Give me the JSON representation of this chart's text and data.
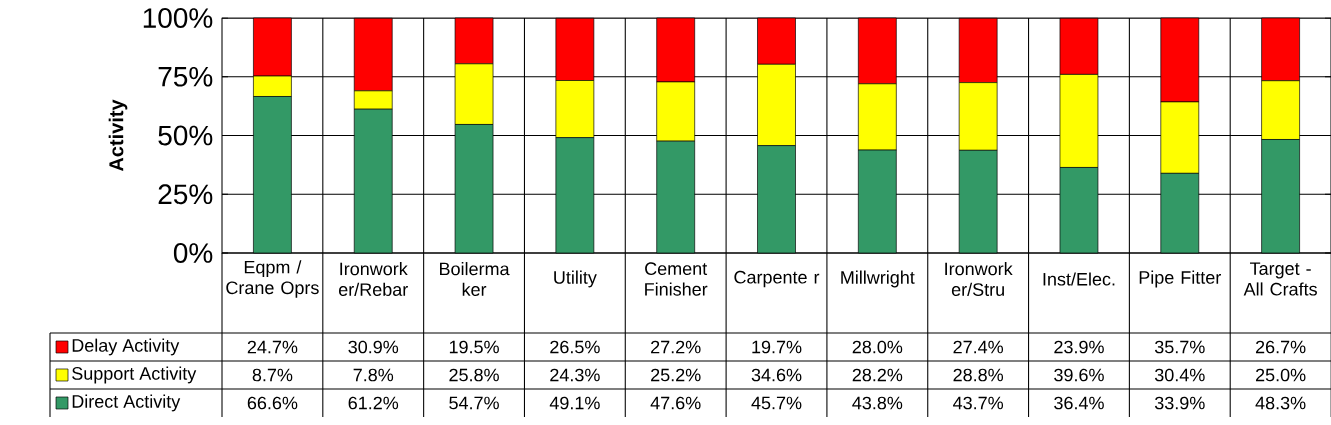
{
  "chart_data": {
    "type": "bar",
    "stacked": true,
    "ylabel": "Activity",
    "categories": [
      "Eqpm / Crane Oprs",
      "Ironwork er/Rebar",
      "Boilerma ker",
      "Utility",
      "Cement Finisher",
      "Carpente r",
      "Millwright",
      "Ironwork er/Stru",
      "Inst/Elec.",
      "Pipe Fitter",
      "Target - All Crafts"
    ],
    "series": [
      {
        "name": "Direct Activity",
        "color": "#339966",
        "values": [
          66.6,
          61.2,
          54.7,
          49.1,
          47.6,
          45.7,
          43.8,
          43.7,
          36.4,
          33.9,
          48.3
        ],
        "value_labels": [
          "66.6%",
          "61.2%",
          "54.7%",
          "49.1%",
          "47.6%",
          "45.7%",
          "43.8%",
          "43.7%",
          "36.4%",
          "33.9%",
          "48.3%"
        ]
      },
      {
        "name": "Support Activity",
        "color": "#ffff00",
        "values": [
          8.7,
          7.8,
          25.8,
          24.3,
          25.2,
          34.6,
          28.2,
          28.8,
          39.6,
          30.4,
          25.0
        ],
        "value_labels": [
          "8.7%",
          "7.8%",
          "25.8%",
          "24.3%",
          "25.2%",
          "34.6%",
          "28.2%",
          "28.8%",
          "39.6%",
          "30.4%",
          "25.0%"
        ]
      },
      {
        "name": "Delay Activity",
        "color": "#ff0000",
        "values": [
          24.7,
          30.9,
          19.5,
          26.5,
          27.2,
          19.7,
          28.0,
          27.4,
          23.9,
          35.7,
          26.7
        ],
        "value_labels": [
          "24.7%",
          "30.9%",
          "19.5%",
          "26.5%",
          "27.2%",
          "19.7%",
          "28.0%",
          "27.4%",
          "23.9%",
          "35.7%",
          "26.7%"
        ]
      }
    ],
    "ylim": [
      0,
      100
    ],
    "yticks": [
      {
        "value": 0,
        "label": "0%"
      },
      {
        "value": 25,
        "label": "25%"
      },
      {
        "value": 50,
        "label": "50%"
      },
      {
        "value": 75,
        "label": "75%"
      },
      {
        "value": 100,
        "label": "100%"
      }
    ],
    "grid": true,
    "legend": "bottom"
  }
}
